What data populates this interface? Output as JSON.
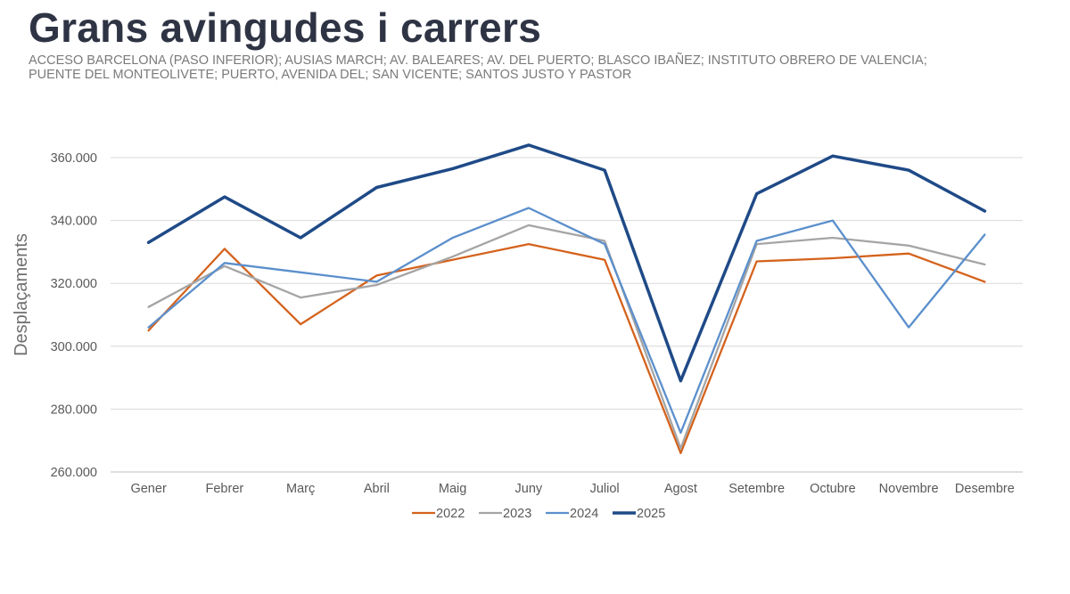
{
  "header": {
    "title": "Grans avingudes i carrers",
    "subtitle_line1": "ACCESO BARCELONA (PASO INFERIOR); AUSIAS MARCH; AV. BALEARES; AV. DEL PUERTO; BLASCO IBAÑEZ; INSTITUTO OBRERO DE VALENCIA;",
    "subtitle_line2": "PUENTE DEL MONTEOLIVETE; PUERTO, AVENIDA DEL; SAN VICENTE; SANTOS JUSTO Y PASTOR"
  },
  "chart_data": {
    "type": "line",
    "title": "Grans avingudes i carrers",
    "xlabel": "",
    "ylabel": "Desplaçaments",
    "ylim": [
      260000,
      360000
    ],
    "yticks": [
      260000,
      280000,
      300000,
      320000,
      340000,
      360000
    ],
    "ytick_labels": [
      "260.000",
      "280.000",
      "300.000",
      "320.000",
      "340.000",
      "360.000"
    ],
    "grid": true,
    "legend_position": "bottom",
    "categories": [
      "Gener",
      "Febrer",
      "Març",
      "Abril",
      "Maig",
      "Juny",
      "Juliol",
      "Agost",
      "Setembre",
      "Octubre",
      "Novembre",
      "Desembre"
    ],
    "series": [
      {
        "name": "2022",
        "color": "#d4621c",
        "values": [
          305000,
          331000,
          307000,
          322500,
          327500,
          332500,
          327500,
          266000,
          327000,
          328000,
          329500,
          320500
        ]
      },
      {
        "name": "2023",
        "color": "#a5a5a5",
        "values": [
          312500,
          325500,
          315500,
          319500,
          328500,
          338500,
          333500,
          267500,
          332500,
          334500,
          332000,
          326000
        ]
      },
      {
        "name": "2024",
        "color": "#5b8fcc",
        "values": [
          306000,
          326500,
          323500,
          320500,
          334500,
          344000,
          332500,
          272500,
          333500,
          340000,
          306000,
          335500
        ]
      },
      {
        "name": "2025",
        "color": "#1f4a87",
        "values": [
          333000,
          347500,
          334500,
          350500,
          356500,
          364000,
          356000,
          289000,
          348500,
          360500,
          356000,
          343000
        ]
      }
    ]
  }
}
